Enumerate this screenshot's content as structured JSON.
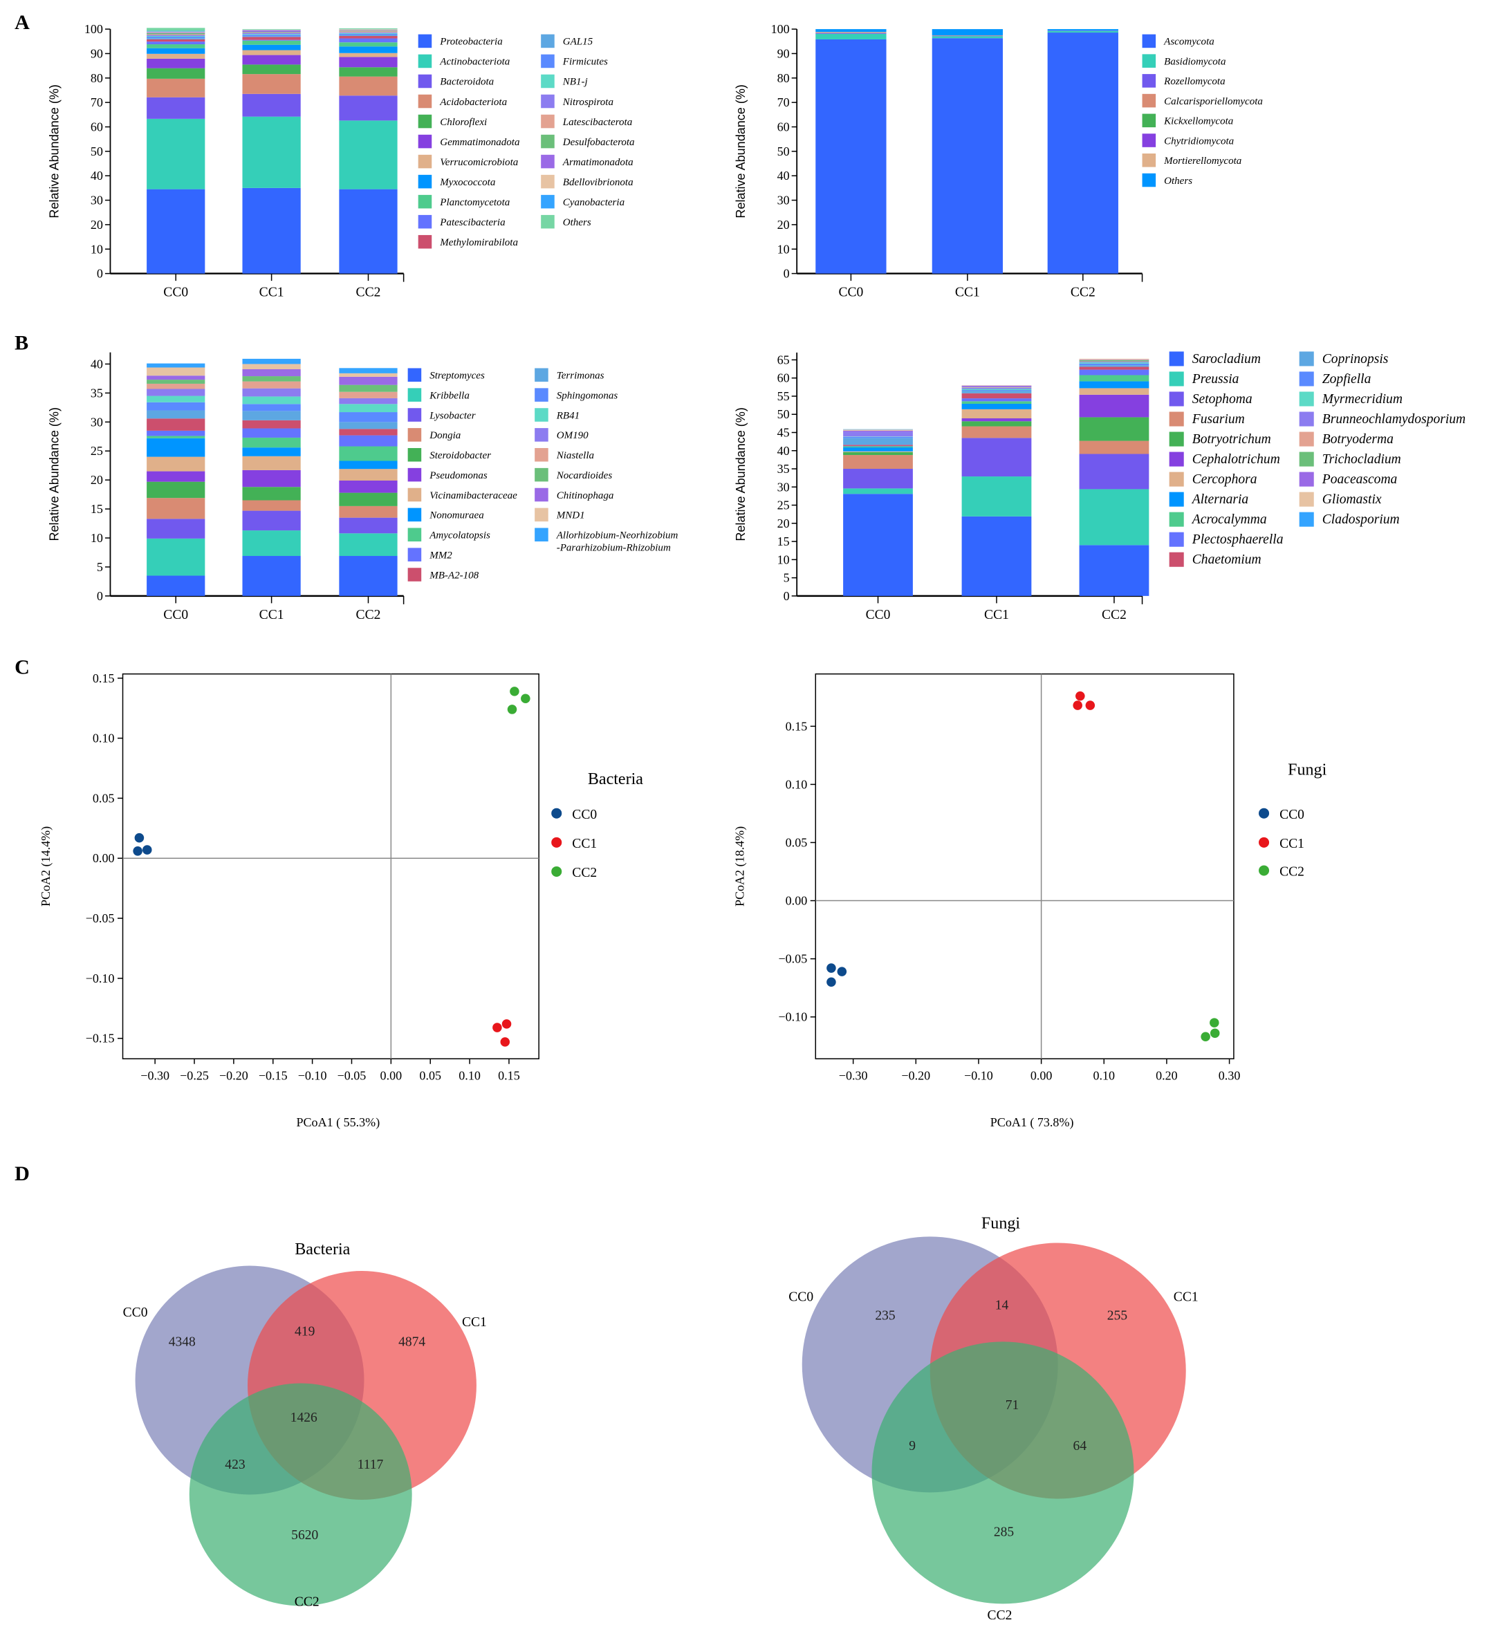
{
  "panel_labels": [
    "A",
    "B",
    "C",
    "D"
  ],
  "palette": [
    "#3366ff",
    "#35cfb8",
    "#7159ee",
    "#d98b73",
    "#43b156",
    "#8540e0",
    "#e0b08a",
    "#0095ff",
    "#4ecb8d",
    "#6473ff",
    "#cc4f6d",
    "#5da7e2",
    "#5a8aff",
    "#5cdac6",
    "#8c7cf0",
    "#e3a291",
    "#6bbf7a",
    "#9a6ae6",
    "#e7c3a3",
    "#34a4ff",
    "#76d6a4"
  ],
  "group_colors": {
    "CC0": "#0d4a8c",
    "CC1": "#e8161b",
    "CC2": "#3aac35"
  },
  "venn_colors": {
    "CC0": "#7b80b6",
    "CC1": "#ee4b4b",
    "CC2": "#3daf72"
  },
  "chart_data": [
    {
      "id": "bact-phylum",
      "type": "bar",
      "stacked": true,
      "ylabel": "Relative Abundance (%)",
      "ylim": [
        0,
        100
      ],
      "yticks": [
        0,
        10,
        20,
        30,
        40,
        50,
        60,
        70,
        80,
        90,
        100
      ],
      "categories": [
        "CC0",
        "CC1",
        "CC2"
      ],
      "series": [
        {
          "name": "Proteobacteria",
          "values": [
            34.5,
            35.0,
            34.5
          ]
        },
        {
          "name": "Actinobacteriota",
          "values": [
            28.8,
            29.2,
            28.1
          ]
        },
        {
          "name": "Bacteroidota",
          "values": [
            8.8,
            9.3,
            10.2
          ]
        },
        {
          "name": "Acidobacteriota",
          "values": [
            7.6,
            8.1,
            7.8
          ]
        },
        {
          "name": "Chloroflexi",
          "values": [
            4.3,
            3.9,
            3.8
          ]
        },
        {
          "name": "Gemmatimonadota",
          "values": [
            3.9,
            3.9,
            4.2
          ]
        },
        {
          "name": "Verrucomicrobiota",
          "values": [
            2.0,
            2.0,
            1.6
          ]
        },
        {
          "name": "Myxococcota",
          "values": [
            2.3,
            2.2,
            2.7
          ]
        },
        {
          "name": "Planctomycetota",
          "values": [
            1.6,
            1.7,
            1.7
          ]
        },
        {
          "name": "Patescibacteria",
          "values": [
            1.1,
            0.3,
            1.6
          ]
        },
        {
          "name": "Methylomirabilota",
          "values": [
            0.9,
            1.2,
            1.0
          ]
        },
        {
          "name": "GAL15",
          "values": [
            0.5,
            0.3,
            0.4
          ]
        },
        {
          "name": "Firmicutes",
          "values": [
            0.6,
            0.6,
            0.5
          ]
        },
        {
          "name": "NB1-j",
          "values": [
            0.3,
            0.3,
            0.3
          ]
        },
        {
          "name": "Nitrospirota",
          "values": [
            0.4,
            0.5,
            0.3
          ]
        },
        {
          "name": "Latescibacterota",
          "values": [
            0.3,
            0.2,
            0.4
          ]
        },
        {
          "name": "Desulfobacterota",
          "values": [
            0.5,
            0.2,
            0.2
          ]
        },
        {
          "name": "Armatimonadota",
          "values": [
            0.3,
            0.6,
            0.2
          ]
        },
        {
          "name": "Bdellovibrionota",
          "values": [
            0.3,
            0.2,
            0.4
          ]
        },
        {
          "name": "Cyanobacteria",
          "values": [
            0.3,
            0.1,
            0.1
          ]
        },
        {
          "name": "Others",
          "values": [
            1.2,
            0.2,
            0.3
          ]
        }
      ]
    },
    {
      "id": "fungi-phylum",
      "type": "bar",
      "stacked": true,
      "ylabel": "Relative Abundance (%)",
      "ylim": [
        0,
        100
      ],
      "yticks": [
        0,
        10,
        20,
        30,
        40,
        50,
        60,
        70,
        80,
        90,
        100
      ],
      "categories": [
        "CC0",
        "CC1",
        "CC2"
      ],
      "series": [
        {
          "name": "Ascomycota",
          "values": [
            95.8,
            96.3,
            98.6
          ]
        },
        {
          "name": "Basidiomycota",
          "values": [
            2.3,
            0.8,
            0.6
          ]
        },
        {
          "name": "Rozellomycota",
          "values": [
            0.3,
            0.1,
            0.1
          ]
        },
        {
          "name": "Calcarisporiellomycota",
          "values": [
            0.2,
            0.1,
            0.0
          ]
        },
        {
          "name": "Kickxellomycota",
          "values": [
            0.1,
            0.1,
            0.0
          ]
        },
        {
          "name": "Chytridiomycota",
          "values": [
            0.1,
            0.1,
            0.1
          ]
        },
        {
          "name": "Mortierellomycota",
          "values": [
            0.1,
            0.0,
            0.0
          ]
        },
        {
          "name": "Others",
          "values": [
            1.1,
            2.5,
            0.6
          ]
        }
      ]
    },
    {
      "id": "bact-genus",
      "type": "bar",
      "stacked": true,
      "ylabel": "Relative Abundance (%)",
      "ylim": [
        0,
        42
      ],
      "yticks": [
        0,
        5,
        10,
        15,
        20,
        25,
        30,
        35,
        40
      ],
      "categories": [
        "CC0",
        "CC1",
        "CC2"
      ],
      "series": [
        {
          "name": "Streptomyces",
          "values": [
            3.5,
            6.9,
            6.9
          ]
        },
        {
          "name": "Kribbella",
          "values": [
            6.4,
            4.4,
            3.9
          ]
        },
        {
          "name": "Lysobacter",
          "values": [
            3.4,
            3.4,
            2.7
          ]
        },
        {
          "name": "Dongia",
          "values": [
            3.6,
            1.8,
            2.0
          ]
        },
        {
          "name": "Steroidobacter",
          "values": [
            2.8,
            2.3,
            2.3
          ]
        },
        {
          "name": "Pseudomonas",
          "values": [
            1.8,
            2.9,
            2.1
          ]
        },
        {
          "name": "Vicinamibacteraceae",
          "values": [
            2.5,
            2.4,
            2.0
          ]
        },
        {
          "name": "Nonomuraea",
          "values": [
            3.2,
            1.5,
            1.4
          ]
        },
        {
          "name": "Amycolatopsis",
          "values": [
            0.4,
            1.7,
            2.5
          ]
        },
        {
          "name": "MM2",
          "values": [
            0.9,
            1.6,
            1.9
          ]
        },
        {
          "name": "MB-A2-108",
          "values": [
            2.1,
            1.4,
            1.1
          ]
        },
        {
          "name": "Terrimonas",
          "values": [
            1.4,
            1.6,
            1.2
          ]
        },
        {
          "name": "Sphingomonas",
          "values": [
            1.4,
            1.2,
            1.7
          ]
        },
        {
          "name": "RB41",
          "values": [
            1.1,
            1.3,
            1.4
          ]
        },
        {
          "name": "OM190",
          "values": [
            1.2,
            1.4,
            1.0
          ]
        },
        {
          "name": "Niastella",
          "values": [
            0.9,
            1.2,
            1.1
          ]
        },
        {
          "name": "Nocardioides",
          "values": [
            0.7,
            0.9,
            1.2
          ]
        },
        {
          "name": "Chitinophaga",
          "values": [
            0.7,
            1.2,
            1.4
          ]
        },
        {
          "name": "MND1",
          "values": [
            1.4,
            0.9,
            0.6
          ]
        },
        {
          "name": "Allorhizobium-Neorhizobium\n-Pararhizobium-Rhizobium",
          "values": [
            0.7,
            0.9,
            0.9
          ]
        }
      ]
    },
    {
      "id": "fungi-genus",
      "type": "bar",
      "stacked": true,
      "ylabel": "Relative Abundance (%)",
      "ylim": [
        0,
        67
      ],
      "yticks": [
        0,
        5,
        10,
        15,
        20,
        25,
        30,
        35,
        40,
        45,
        50,
        55,
        60,
        65
      ],
      "categories": [
        "CC0",
        "CC1",
        "CC2"
      ],
      "series": [
        {
          "name": "Sarocladium",
          "values": [
            28.1,
            21.9,
            14.0
          ]
        },
        {
          "name": "Preussia",
          "values": [
            1.5,
            11.0,
            15.4
          ]
        },
        {
          "name": "Setophoma",
          "values": [
            5.4,
            10.6,
            9.7
          ]
        },
        {
          "name": "Fusarium",
          "values": [
            3.8,
            3.2,
            3.6
          ]
        },
        {
          "name": "Botryotrichum",
          "values": [
            0.8,
            1.4,
            6.5
          ]
        },
        {
          "name": "Cephalotrichum",
          "values": [
            0.0,
            0.8,
            6.2
          ]
        },
        {
          "name": "Cercophora",
          "values": [
            0.2,
            2.5,
            1.8
          ]
        },
        {
          "name": "Alternaria",
          "values": [
            1.1,
            1.5,
            1.9
          ]
        },
        {
          "name": "Acrocalymma",
          "values": [
            0.3,
            0.7,
            1.7
          ]
        },
        {
          "name": "Plectosphaerella",
          "values": [
            0.1,
            0.8,
            1.5
          ]
        },
        {
          "name": "Chaetomium",
          "values": [
            0.3,
            1.4,
            0.8
          ]
        },
        {
          "name": "Coprinopsis",
          "values": [
            1.9,
            0.7,
            0.4
          ]
        },
        {
          "name": "Zopfiella",
          "values": [
            0.3,
            0.2,
            0.5
          ]
        },
        {
          "name": "Myrmecridium",
          "values": [
            0.1,
            0.3,
            0.3
          ]
        },
        {
          "name": "Brunneochlamydosporium",
          "values": [
            1.3,
            0.3,
            0.2
          ]
        },
        {
          "name": "Botryoderma",
          "values": [
            0.0,
            0.1,
            0.1
          ]
        },
        {
          "name": "Trichocladium",
          "values": [
            0.0,
            0.1,
            0.3
          ]
        },
        {
          "name": "Poaceascoma",
          "values": [
            0.3,
            0.4,
            0.1
          ]
        },
        {
          "name": "Gliomastix",
          "values": [
            0.3,
            0.1,
            0.3
          ]
        },
        {
          "name": "Cladosporium",
          "values": [
            0.1,
            0.0,
            0.0
          ]
        }
      ]
    },
    {
      "id": "pcoa-bacteria",
      "type": "scatter",
      "title": "Bacteria",
      "xlabel": "PCoA1 ( 55.3%)",
      "ylabel": "PCoA2 (14.4%)",
      "xticks": [
        -0.3,
        -0.25,
        -0.2,
        -0.15,
        -0.1,
        -0.05,
        0.0,
        0.05,
        0.1,
        0.15
      ],
      "yticks": [
        -0.15,
        -0.1,
        -0.05,
        0.0,
        0.05,
        0.1,
        0.15
      ],
      "xlim": [
        -0.341,
        0.188
      ],
      "ylim": [
        -0.167,
        0.1535
      ],
      "legend": "right",
      "series": [
        {
          "name": "CC0",
          "points": [
            [
              -0.32,
              0.017
            ],
            [
              -0.322,
              0.006
            ],
            [
              -0.31,
              0.007
            ]
          ]
        },
        {
          "name": "CC1",
          "points": [
            [
              0.135,
              -0.141
            ],
            [
              0.147,
              -0.138
            ],
            [
              0.145,
              -0.153
            ]
          ]
        },
        {
          "name": "CC2",
          "points": [
            [
              0.157,
              0.139
            ],
            [
              0.171,
              0.133
            ],
            [
              0.154,
              0.124
            ]
          ]
        }
      ]
    },
    {
      "id": "pcoa-fungi",
      "type": "scatter",
      "title": "Fungi",
      "xlabel": "PCoA1 ( 73.8%)",
      "ylabel": "PCoA2 (18.4%)",
      "xticks": [
        -0.3,
        -0.2,
        -0.1,
        0.0,
        0.1,
        0.2,
        0.3
      ],
      "yticks": [
        -0.1,
        -0.05,
        0.0,
        0.05,
        0.1,
        0.15
      ],
      "xlim": [
        -0.36,
        0.307
      ],
      "ylim": [
        -0.136,
        0.195
      ],
      "legend": "right",
      "series": [
        {
          "name": "CC0",
          "points": [
            [
              -0.335,
              -0.058
            ],
            [
              -0.318,
              -0.061
            ],
            [
              -0.335,
              -0.07
            ]
          ]
        },
        {
          "name": "CC1",
          "points": [
            [
              0.062,
              0.176
            ],
            [
              0.078,
              0.168
            ],
            [
              0.058,
              0.168
            ]
          ]
        },
        {
          "name": "CC2",
          "points": [
            [
              0.262,
              -0.117
            ],
            [
              0.276,
              -0.105
            ],
            [
              0.277,
              -0.114
            ]
          ]
        }
      ]
    },
    {
      "id": "venn-bacteria",
      "type": "venn",
      "title": "Bacteria",
      "sets": [
        "CC0",
        "CC1",
        "CC2"
      ],
      "regions": {
        "CC0_only": 4348,
        "CC1_only": 4874,
        "CC2_only": 5620,
        "CC0_CC1": 419,
        "CC0_CC2": 423,
        "CC1_CC2": 1117,
        "all": 1426
      }
    },
    {
      "id": "venn-fungi",
      "type": "venn",
      "title": "Fungi",
      "sets": [
        "CC0",
        "CC1",
        "CC2"
      ],
      "regions": {
        "CC0_only": 235,
        "CC1_only": 255,
        "CC2_only": 285,
        "CC0_CC1": 14,
        "CC0_CC2": 9,
        "CC1_CC2": 64,
        "all": 71
      }
    }
  ]
}
